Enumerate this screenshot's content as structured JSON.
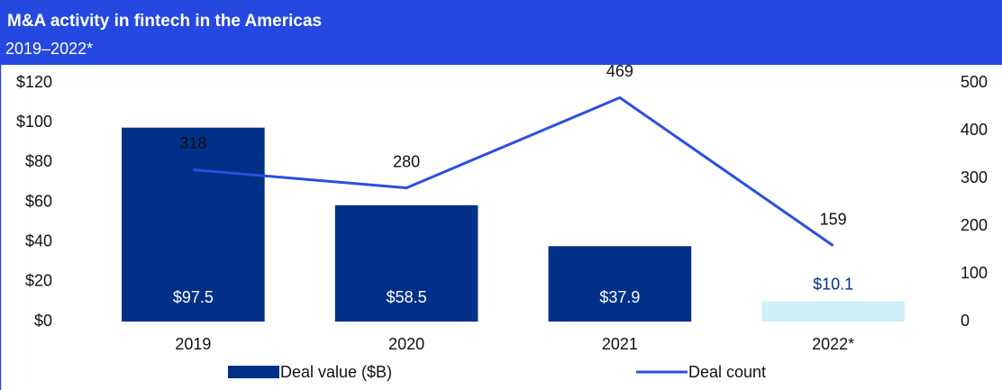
{
  "chart_data": {
    "type": "bar",
    "title": "M&A activity in fintech in the Americas",
    "subtitle": "2019–2022*",
    "categories": [
      "2019",
      "2020",
      "2021",
      "2022*"
    ],
    "series": [
      {
        "name": "Deal value ($B)",
        "type": "bar",
        "color": "#003087",
        "colors": [
          "#003087",
          "#003087",
          "#003087",
          "#cdf0fb"
        ],
        "values": [
          97.5,
          58.5,
          37.9,
          10.1
        ],
        "value_labels": [
          "$97.5",
          "$58.5",
          "$37.9",
          "$10.1"
        ]
      },
      {
        "name": "Deal count",
        "type": "line",
        "axis": "y2",
        "color": "#2a4fe0",
        "values": [
          318,
          280,
          469,
          159
        ]
      }
    ],
    "ylim": [
      0,
      120
    ],
    "yticks": [
      {
        "value": 0,
        "label": "$0"
      },
      {
        "value": 20,
        "label": "$20"
      },
      {
        "value": 40,
        "label": "$40"
      },
      {
        "value": 60,
        "label": "$60"
      },
      {
        "value": 80,
        "label": "$80"
      },
      {
        "value": 100,
        "label": "$100"
      },
      {
        "value": 120,
        "label": "$120"
      }
    ],
    "y2lim": [
      0,
      500
    ],
    "y2ticks": [
      0,
      100,
      200,
      300,
      400,
      500
    ]
  }
}
